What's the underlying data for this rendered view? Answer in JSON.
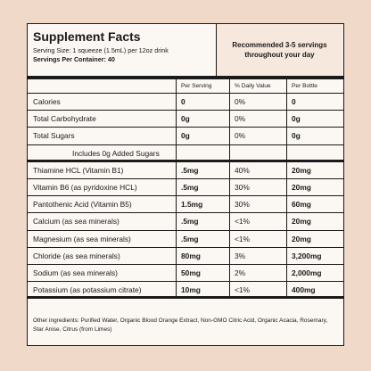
{
  "header": {
    "title": "Supplement Facts",
    "serving_size": "Serving Size: 1 squeeze (1.5mL) per 12oz drink",
    "servings_per_container": "Servings Per Container: 40",
    "recommendation": "Recommended 3-5 servings throughout your day"
  },
  "columns": {
    "per_serving": "Per Serving",
    "daily_value": "% Daily Value",
    "per_bottle": "Per Bottle"
  },
  "rows": [
    {
      "name": "Calories",
      "serving": "0",
      "dv": "0%",
      "bottle": "0"
    },
    {
      "name": "Total Carbohydrate",
      "serving": "0g",
      "dv": "0%",
      "bottle": "0g"
    },
    {
      "name": "Total Sugars",
      "serving": "0g",
      "dv": "0%",
      "bottle": "0g"
    },
    {
      "name": "Includes 0g Added Sugars",
      "serving": "",
      "dv": "",
      "bottle": ""
    },
    {
      "name": "Thiamine HCL (Vitamin B1)",
      "serving": ".5mg",
      "dv": "40%",
      "bottle": "20mg"
    },
    {
      "name": "Vitamin B6 (as pyridoxine HCL)",
      "serving": ".5mg",
      "dv": "30%",
      "bottle": "20mg"
    },
    {
      "name": "Pantothenic Acid (Vitamin B5)",
      "serving": "1.5mg",
      "dv": "30%",
      "bottle": "60mg"
    },
    {
      "name": "Calcium (as sea minerals)",
      "serving": ".5mg",
      "dv": "<1%",
      "bottle": "20mg"
    },
    {
      "name": "Magnesium (as sea minerals)",
      "serving": ".5mg",
      "dv": "<1%",
      "bottle": "20mg"
    },
    {
      "name": "Chloride (as sea minerals)",
      "serving": "80mg",
      "dv": "3%",
      "bottle": "3,200mg"
    },
    {
      "name": "Sodium (as sea minerals)",
      "serving": "50mg",
      "dv": "2%",
      "bottle": "2,000mg"
    },
    {
      "name": "Potassium (as potassium citrate)",
      "serving": "10mg",
      "dv": "<1%",
      "bottle": "400mg"
    }
  ],
  "footer": {
    "ingredients": "Other ingredients: Purified Water, Organic Blood Orange Extract, Non-GMO Citric Acid, Organic Acacia, Rosemary, Star Anise, Citrus (from Limes)"
  }
}
